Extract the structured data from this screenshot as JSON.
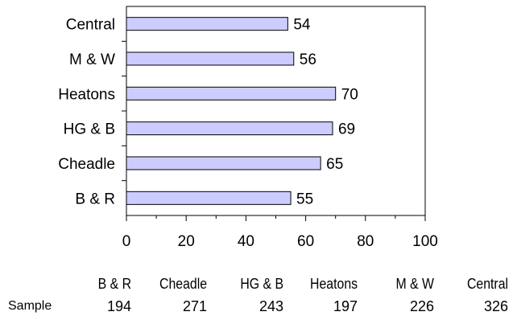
{
  "colors": {
    "bar_fill": "#CCCCFF",
    "bar_stroke": "#000000",
    "axis": "#000000"
  },
  "chart_data": {
    "type": "bar",
    "orientation": "horizontal",
    "categories": [
      "Central",
      "M & W",
      "Heatons",
      "HG & B",
      "Cheadle",
      "B & R"
    ],
    "values": [
      54,
      56,
      70,
      69,
      65,
      55
    ],
    "xlim": [
      0,
      100
    ],
    "x_ticks": [
      0,
      20,
      40,
      60,
      80,
      100
    ],
    "grid": false,
    "legend": "none",
    "data_labels": true
  },
  "sample_table": {
    "row_label": "Sample",
    "columns": [
      "B & R",
      "Cheadle",
      "HG & B",
      "Heatons",
      "M & W",
      "Central"
    ],
    "values": [
      "194",
      "271",
      "243",
      "197",
      "226",
      "326"
    ]
  }
}
